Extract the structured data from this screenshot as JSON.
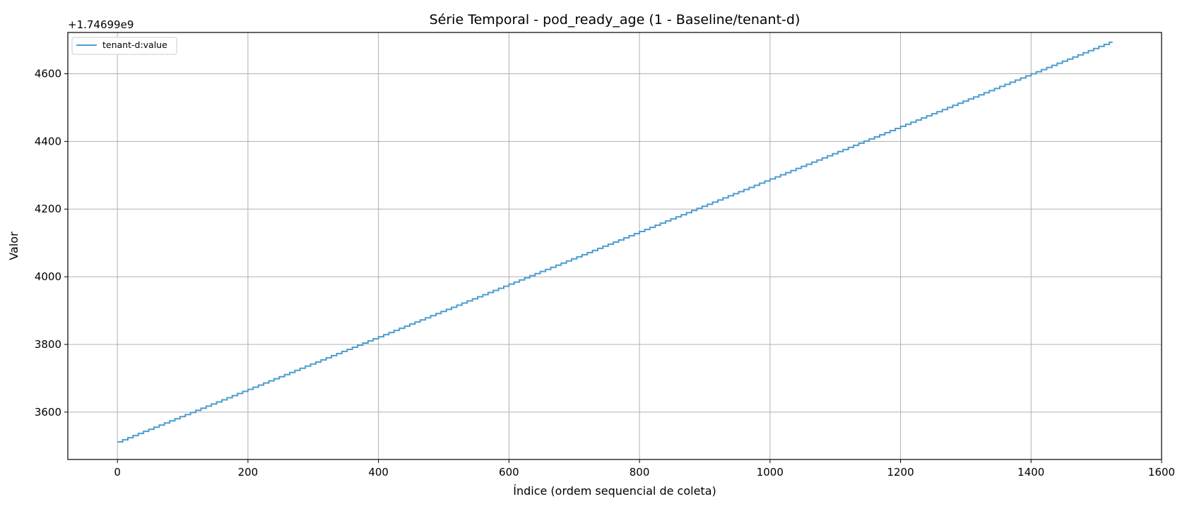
{
  "chart_data": {
    "type": "line",
    "title": "Série Temporal - pod_ready_age (1 - Baseline/tenant-d)",
    "xlabel": "Índice (ordem sequencial de coleta)",
    "ylabel": "Valor",
    "y_offset_label": "+1.74699e9",
    "xlim": [
      -76,
      1600
    ],
    "ylim": [
      3460,
      4722
    ],
    "xticks": [
      0,
      200,
      400,
      600,
      800,
      1000,
      1200,
      1400,
      1600
    ],
    "yticks": [
      3600,
      3800,
      4000,
      4200,
      4400,
      4600
    ],
    "grid": true,
    "legend_position": "top-left",
    "series": [
      {
        "name": "tenant-d:value",
        "color": "#4c9dcf",
        "x_start": 0,
        "x_end": 1525,
        "y_start": 3512,
        "y_end": 4697,
        "step_every": 8
      }
    ]
  }
}
